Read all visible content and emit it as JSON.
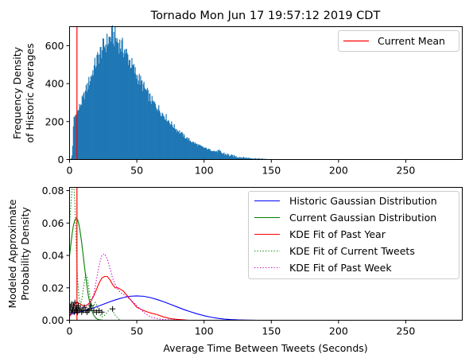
{
  "chart_data": [
    {
      "type": "bar",
      "title": "Tornado Mon Jun 17 19:57:12 2019 CDT",
      "ylabel": [
        "Frequency Density",
        "of Historic Averages"
      ],
      "xlim": [
        0,
        292
      ],
      "ylim": [
        0,
        700
      ],
      "xticks": [
        0,
        50,
        100,
        150,
        200,
        250
      ],
      "yticks": [
        0,
        200,
        400,
        600
      ],
      "bar_color": "#1f77b4",
      "histogram": {
        "bin_width": 0.5,
        "envelope": [
          [
            0,
            0
          ],
          [
            1,
            0
          ],
          [
            2,
            30
          ],
          [
            3,
            210
          ],
          [
            4,
            230
          ],
          [
            6,
            250
          ],
          [
            8,
            290
          ],
          [
            10,
            320
          ],
          [
            12,
            360
          ],
          [
            14,
            400
          ],
          [
            16,
            440
          ],
          [
            18,
            480
          ],
          [
            20,
            520
          ],
          [
            22,
            550
          ],
          [
            24,
            580
          ],
          [
            26,
            600
          ],
          [
            28,
            620
          ],
          [
            30,
            640
          ],
          [
            31,
            648
          ],
          [
            32,
            655
          ],
          [
            34,
            640
          ],
          [
            36,
            620
          ],
          [
            38,
            600
          ],
          [
            40,
            585
          ],
          [
            42,
            560
          ],
          [
            44,
            530
          ],
          [
            46,
            500
          ],
          [
            48,
            470
          ],
          [
            50,
            440
          ],
          [
            52,
            420
          ],
          [
            54,
            395
          ],
          [
            56,
            370
          ],
          [
            58,
            345
          ],
          [
            60,
            320
          ],
          [
            62,
            300
          ],
          [
            64,
            285
          ],
          [
            66,
            270
          ],
          [
            68,
            250
          ],
          [
            70,
            235
          ],
          [
            72,
            220
          ],
          [
            74,
            200
          ],
          [
            76,
            185
          ],
          [
            78,
            170
          ],
          [
            80,
            155
          ],
          [
            82,
            145
          ],
          [
            84,
            130
          ],
          [
            86,
            118
          ],
          [
            88,
            108
          ],
          [
            90,
            98
          ],
          [
            92,
            90
          ],
          [
            94,
            82
          ],
          [
            96,
            75
          ],
          [
            98,
            68
          ],
          [
            100,
            62
          ],
          [
            102,
            57
          ],
          [
            105,
            50
          ],
          [
            110,
            40
          ],
          [
            115,
            30
          ],
          [
            120,
            20
          ],
          [
            125,
            14
          ],
          [
            130,
            10
          ],
          [
            135,
            7
          ],
          [
            140,
            5
          ],
          [
            145,
            3
          ],
          [
            150,
            2
          ],
          [
            155,
            1
          ],
          [
            160,
            0
          ]
        ]
      },
      "vline": {
        "x": 5.5,
        "color": "#ff0000"
      },
      "legend": {
        "position": "upper right",
        "entries": [
          {
            "label": "Current Mean",
            "color": "#ff0000",
            "style": "solid"
          }
        ]
      }
    },
    {
      "type": "line",
      "xlabel": "Average Time Between Tweets (Seconds)",
      "ylabel": [
        "Modeled Approximate",
        "Probability Density"
      ],
      "xlim": [
        0,
        292
      ],
      "ylim": [
        0,
        0.082
      ],
      "xticks": [
        0,
        50,
        100,
        150,
        200,
        250
      ],
      "yticks": [
        0.0,
        0.02,
        0.04,
        0.06,
        0.08
      ],
      "ytick_labels": [
        "0.00",
        "0.02",
        "0.04",
        "0.06",
        "0.08"
      ],
      "vline": {
        "x": 5.5,
        "color": "#ff0000"
      },
      "series": [
        {
          "name": "Historic Gaussian Distribution",
          "color": "#0000ff",
          "style": "solid",
          "x": [
            0,
            5,
            10,
            15,
            20,
            25,
            30,
            35,
            40,
            45,
            50,
            55,
            60,
            65,
            70,
            75,
            80,
            85,
            90,
            95,
            100,
            105,
            110,
            115,
            120,
            125,
            130,
            140,
            150,
            200,
            280
          ],
          "y": [
            0.0035,
            0.0045,
            0.0056,
            0.0069,
            0.0083,
            0.0098,
            0.0114,
            0.0128,
            0.014,
            0.0148,
            0.015,
            0.0148,
            0.014,
            0.0128,
            0.0114,
            0.0098,
            0.0082,
            0.0066,
            0.0052,
            0.0039,
            0.0028,
            0.0019,
            0.0012,
            0.0007,
            0.0004,
            0.0002,
            0.0001,
            0,
            0,
            0,
            0
          ]
        },
        {
          "name": "Current Gaussian Distribution",
          "color": "#008000",
          "style": "solid",
          "x": [
            0,
            1,
            2,
            3,
            4,
            5,
            6,
            7,
            8,
            9,
            10,
            11,
            12,
            13,
            14,
            15,
            16,
            17,
            18,
            19,
            20,
            22,
            25,
            30
          ],
          "y": [
            0.04,
            0.047,
            0.054,
            0.059,
            0.062,
            0.063,
            0.062,
            0.059,
            0.054,
            0.048,
            0.041,
            0.034,
            0.027,
            0.021,
            0.015,
            0.011,
            0.007,
            0.005,
            0.003,
            0.002,
            0.001,
            0.0003,
            0,
            0
          ]
        },
        {
          "name": "KDE Fit of Past Year",
          "color": "#ff0000",
          "style": "solid",
          "x": [
            0,
            2,
            4,
            6,
            8,
            10,
            12,
            14,
            16,
            18,
            20,
            22,
            24,
            26,
            28,
            30,
            32,
            34,
            36,
            38,
            40,
            42,
            44,
            46,
            48,
            50,
            55,
            60,
            65,
            70,
            75,
            80,
            85,
            88
          ],
          "y": [
            0.002,
            0.006,
            0.01,
            0.011,
            0.01,
            0.009,
            0.009,
            0.01,
            0.012,
            0.015,
            0.019,
            0.023,
            0.026,
            0.027,
            0.027,
            0.025,
            0.022,
            0.02,
            0.02,
            0.019,
            0.018,
            0.016,
            0.014,
            0.012,
            0.01,
            0.008,
            0.006,
            0.0045,
            0.0035,
            0.002,
            0.001,
            0.0005,
            0.0002,
            0
          ]
        },
        {
          "name": "KDE Fit of Current Tweets",
          "color": "#008000",
          "style": "dotted",
          "x": [
            0,
            2,
            3,
            4,
            5,
            6,
            7,
            8,
            9,
            10,
            11,
            12,
            13,
            14,
            15,
            16,
            17,
            18,
            19,
            20,
            21,
            22,
            24,
            26,
            28,
            30,
            32,
            34,
            36,
            38
          ],
          "y": [
            0.06,
            0.082,
            0.085,
            0.072,
            0.045,
            0.025,
            0.014,
            0.01,
            0.012,
            0.018,
            0.024,
            0.028,
            0.027,
            0.022,
            0.015,
            0.01,
            0.008,
            0.009,
            0.011,
            0.01,
            0.007,
            0.004,
            0.002,
            0.003,
            0.005,
            0.007,
            0.006,
            0.003,
            0.001,
            0
          ]
        },
        {
          "name": "KDE Fit of Past Week",
          "color": "#bf00bf",
          "style": "dotted",
          "x": [
            0,
            5,
            10,
            15,
            18,
            20,
            22,
            24,
            26,
            28,
            30,
            32,
            34,
            36,
            38,
            40,
            45,
            50,
            55,
            60,
            65,
            70,
            80,
            90,
            100,
            110
          ],
          "y": [
            0.003,
            0.006,
            0.008,
            0.01,
            0.016,
            0.025,
            0.034,
            0.04,
            0.041,
            0.038,
            0.032,
            0.026,
            0.022,
            0.019,
            0.017,
            0.016,
            0.013,
            0.009,
            0.005,
            0.002,
            0.001,
            0.0004,
            0.0001,
            0,
            0,
            0
          ]
        }
      ],
      "points": {
        "marker": "+",
        "color": "#000000",
        "x": [
          0.5,
          1,
          1.5,
          2,
          2.5,
          3,
          3.5,
          4,
          4.5,
          5,
          5.5,
          6,
          6.5,
          7,
          8,
          9,
          10,
          11,
          12,
          13,
          14,
          15,
          16,
          18,
          20,
          22,
          24,
          32
        ],
        "y": [
          0.008,
          0.005,
          0.01,
          0.007,
          0.006,
          0.009,
          0.005,
          0.011,
          0.007,
          0.006,
          0.008,
          0.005,
          0.009,
          0.006,
          0.007,
          0.005,
          0.006,
          0.008,
          0.006,
          0.005,
          0.006,
          0.007,
          0.009,
          0.006,
          0.005,
          0.006,
          0.005,
          0.007
        ]
      },
      "legend": {
        "position": "upper right"
      }
    }
  ]
}
